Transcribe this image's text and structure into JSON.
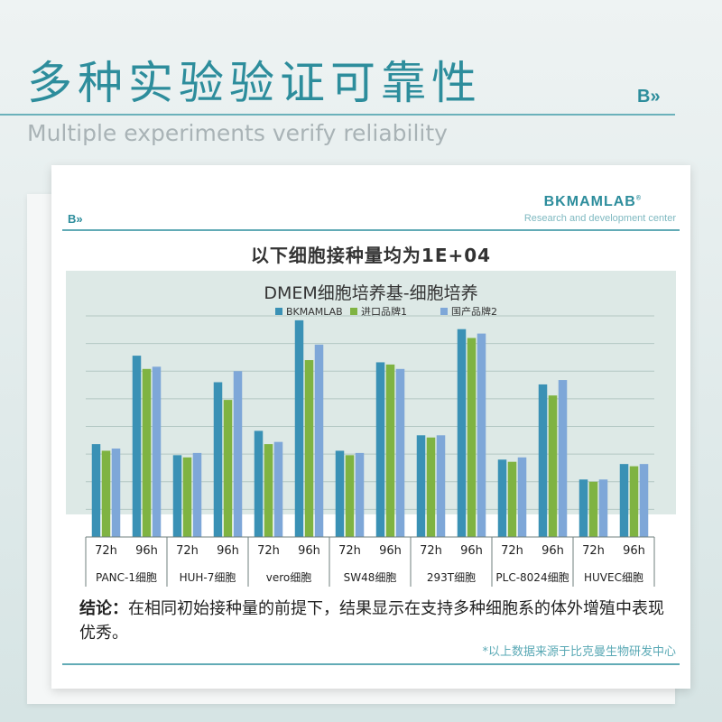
{
  "header": {
    "title": "多种实验验证可靠性",
    "subtitle": "Multiple experiments verify reliability",
    "logo": "B»"
  },
  "card": {
    "logo": "B»",
    "brand": "BKMAMLAB",
    "brand_sub": "Research and development center",
    "chart_note": "以下细胞接种量均为1E+04",
    "conclusion_label": "结论：",
    "conclusion_text": "在相同初始接种量的前提下，结果显示在支持多种细胞系的体外增殖中表现优秀。",
    "footnote": "*以上数据来源于比克曼生物研发中心"
  },
  "colors": {
    "accent": "#2d8d9c",
    "series": [
      "#3a91b5",
      "#7fb342",
      "#7ea7d8"
    ],
    "plot_bg": "#dde9e6",
    "grid": "#b3c7c3"
  },
  "chart_data": {
    "type": "bar",
    "title": "DMEM细胞培养基-细胞培养",
    "legend_position": "top",
    "grid": true,
    "y_axis_labels": false,
    "ylim": [
      0,
      100
    ],
    "groups": [
      "PANC-1细胞",
      "HUH-7细胞",
      "vero细胞",
      "SW48细胞",
      "293T细胞",
      "PLC-8024细胞",
      "HUVEC细胞"
    ],
    "categories": [
      "72h",
      "96h",
      "72h",
      "96h",
      "72h",
      "96h",
      "72h",
      "96h",
      "72h",
      "96h",
      "72h",
      "96h",
      "72h",
      "96h"
    ],
    "series": [
      {
        "name": "BKMAMLAB",
        "values": [
          42,
          82,
          37,
          70,
          48,
          98,
          39,
          79,
          46,
          94,
          35,
          69,
          26,
          33
        ]
      },
      {
        "name": "进口品牌1",
        "values": [
          39,
          76,
          36,
          62,
          42,
          80,
          37,
          78,
          45,
          90,
          34,
          64,
          25,
          32
        ]
      },
      {
        "name": "国产品牌2",
        "values": [
          40,
          77,
          38,
          75,
          43,
          87,
          38,
          76,
          46,
          92,
          36,
          71,
          26,
          33
        ]
      }
    ]
  }
}
